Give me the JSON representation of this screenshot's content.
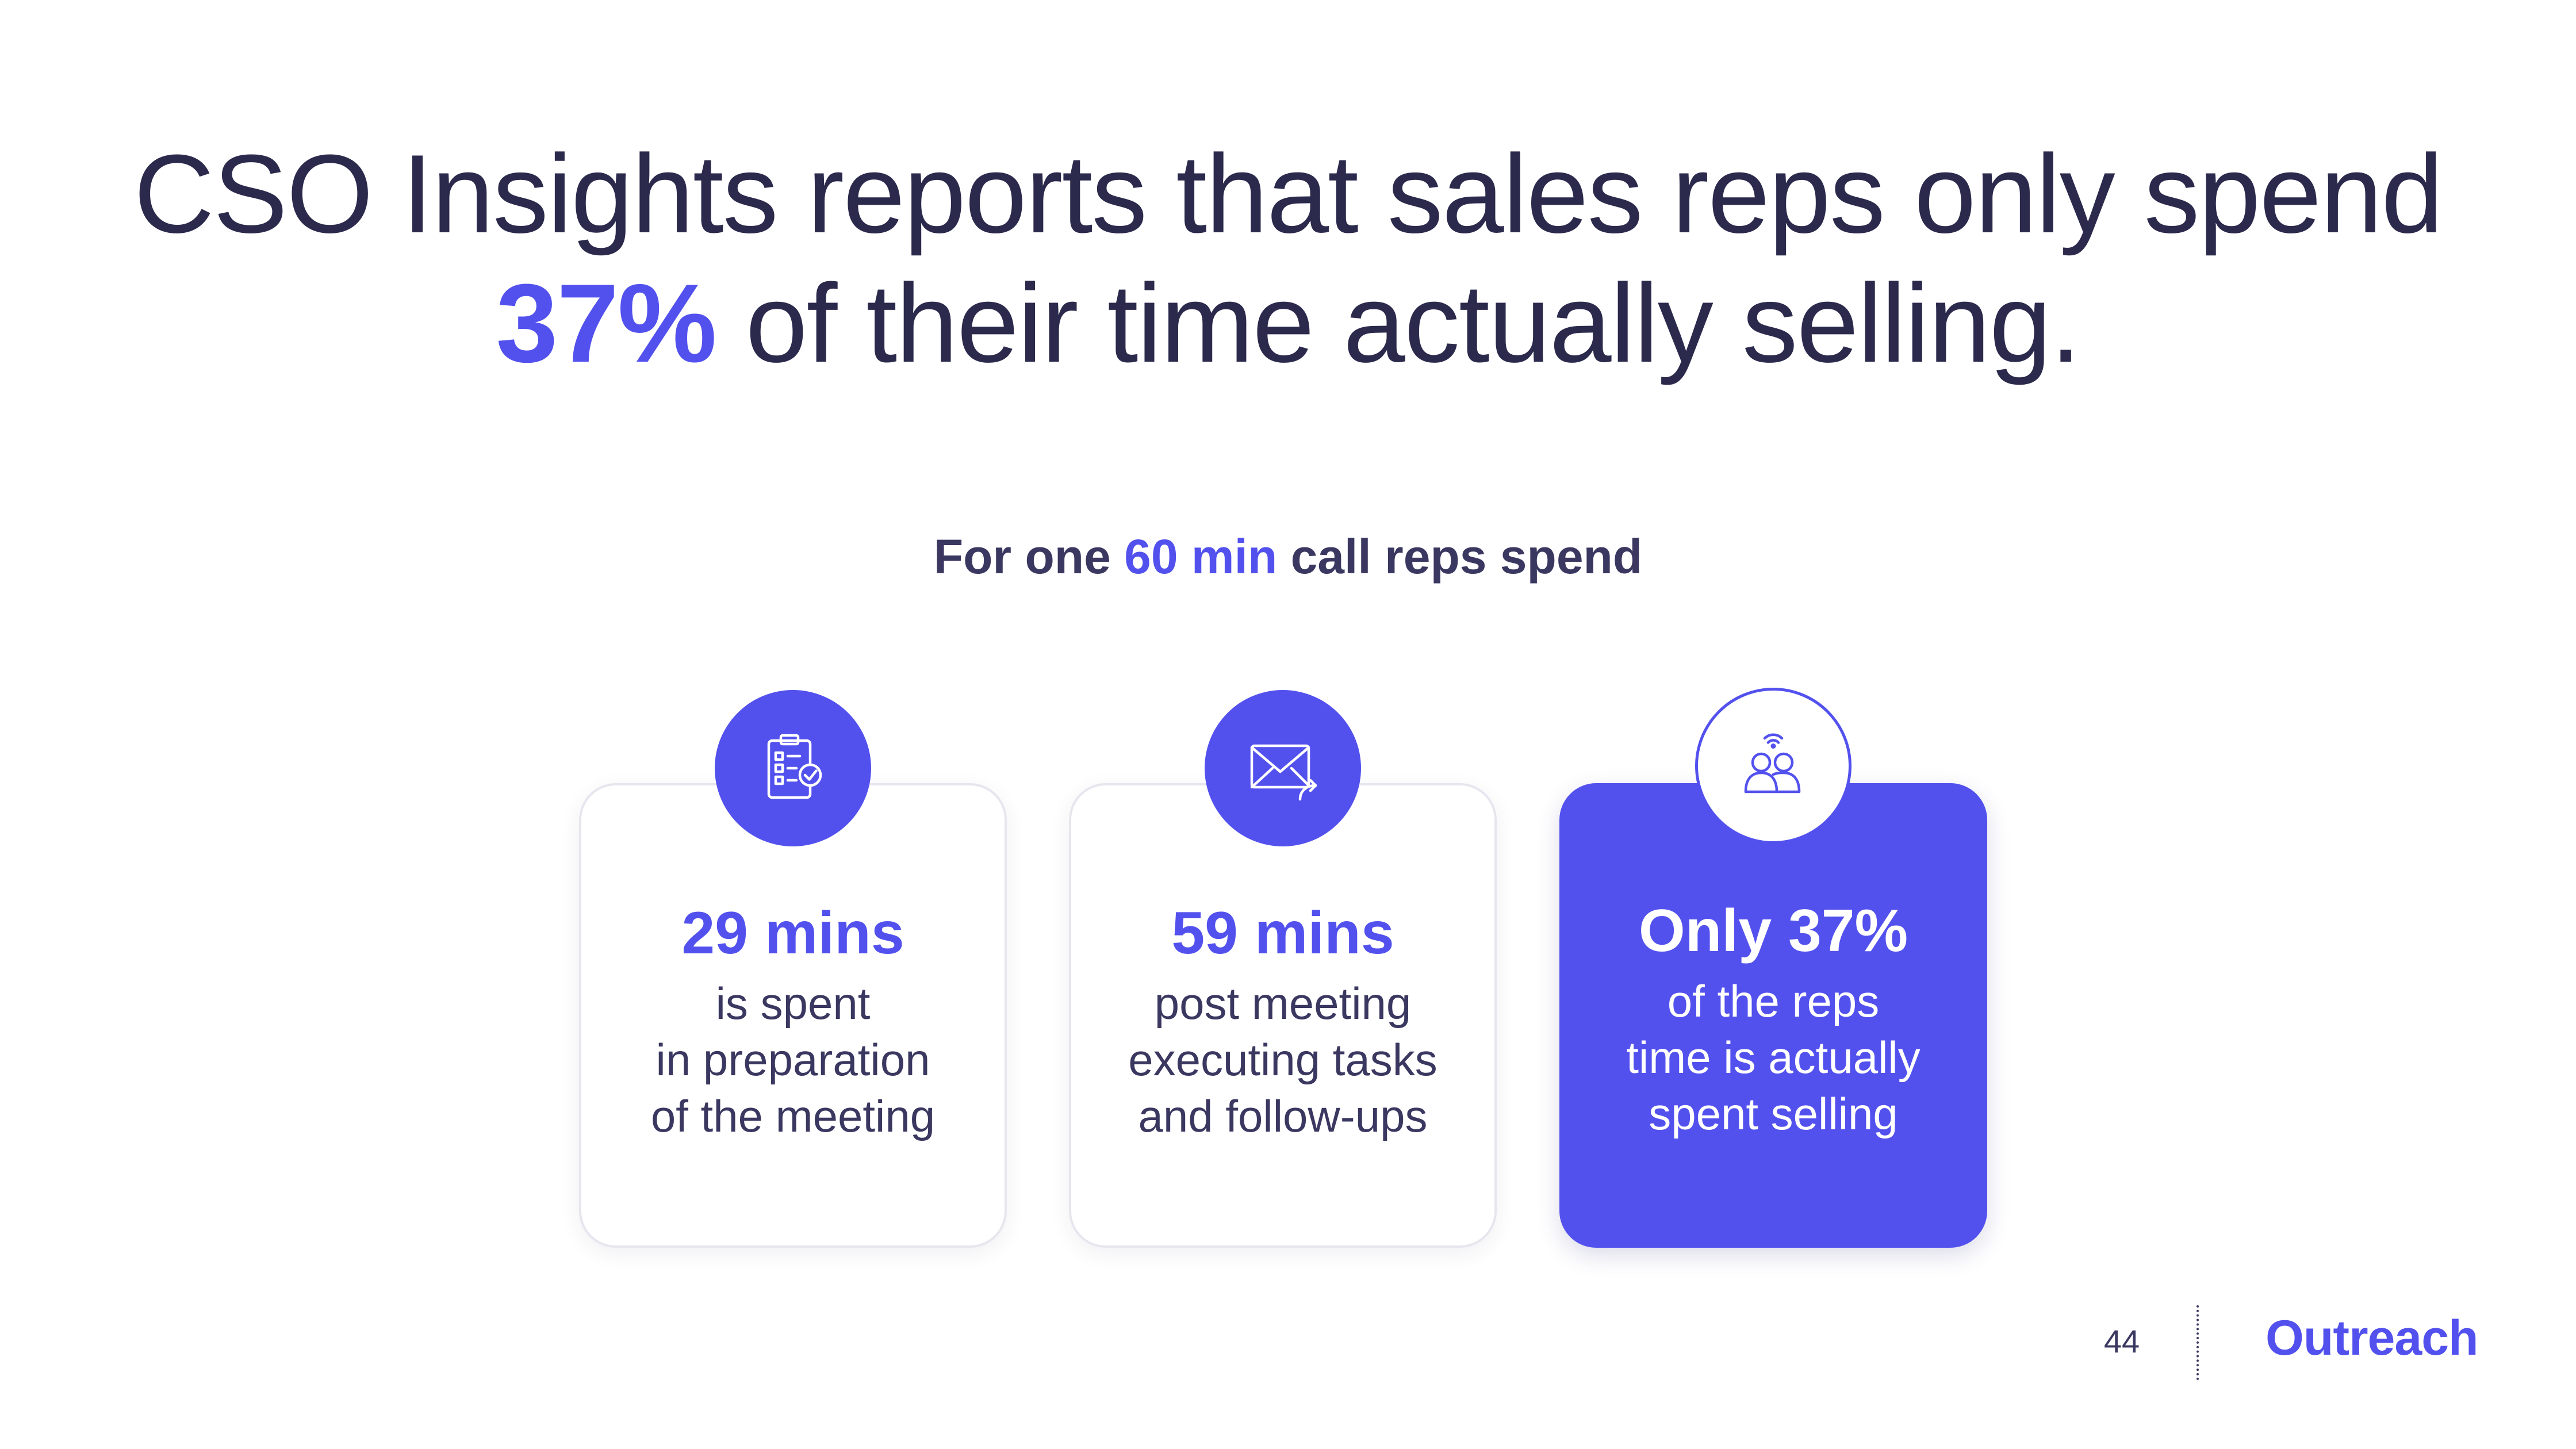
{
  "headline": {
    "line1": "CSO Insights reports that sales reps only spend",
    "line2_accent": "37%",
    "line2_rest": " of their time actually selling."
  },
  "subhead": {
    "before": "For one ",
    "accent": "60 min",
    "after": " call reps spend"
  },
  "cards": [
    {
      "icon": "clipboard-checklist-icon",
      "stat": "29 mins",
      "lines": [
        "is spent",
        "in preparation",
        "of the meeting"
      ]
    },
    {
      "icon": "envelope-reply-icon",
      "stat": "59 mins",
      "lines": [
        "post meeting",
        "executing tasks",
        "and follow-ups"
      ]
    },
    {
      "icon": "people-signal-icon",
      "stat": "Only 37%",
      "lines": [
        "of the reps",
        "time is actually",
        "spent  selling"
      ]
    }
  ],
  "footer": {
    "page_number": "44",
    "logo": "Outreach"
  },
  "colors": {
    "accent": "#5351ee",
    "text": "#2b2a4c"
  }
}
